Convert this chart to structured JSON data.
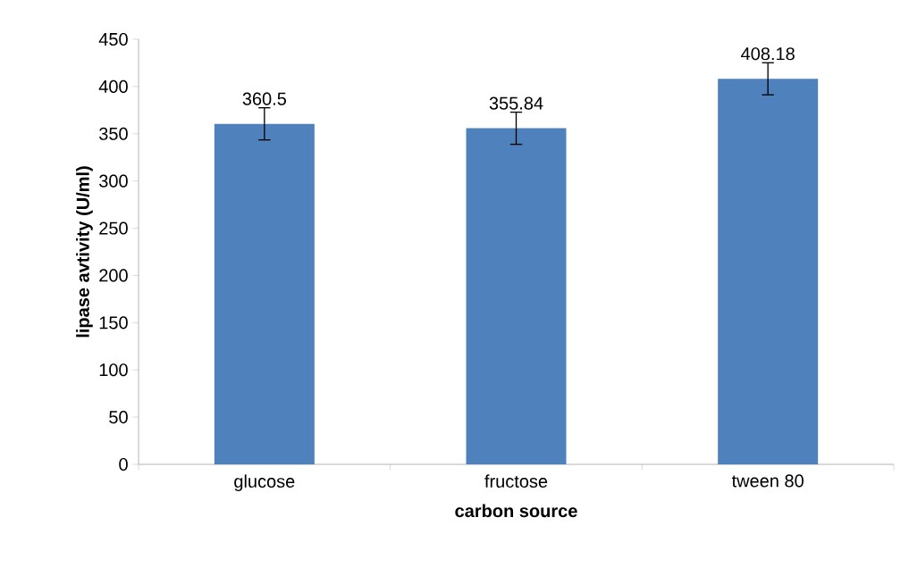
{
  "chart_data": {
    "type": "bar",
    "xlabel": "carbon source",
    "ylabel": "lipase avtivity (U/ml)",
    "categories": [
      "glucose",
      "fructose",
      "tween 80"
    ],
    "values": [
      360.5,
      355.84,
      408.18
    ],
    "errors": [
      17,
      17,
      17
    ],
    "color": "#4f81bd",
    "ylim": [
      0,
      450
    ],
    "yticks": [
      0,
      50,
      100,
      150,
      200,
      250,
      300,
      350,
      400,
      450
    ],
    "data_labels": true,
    "grid": false
  }
}
